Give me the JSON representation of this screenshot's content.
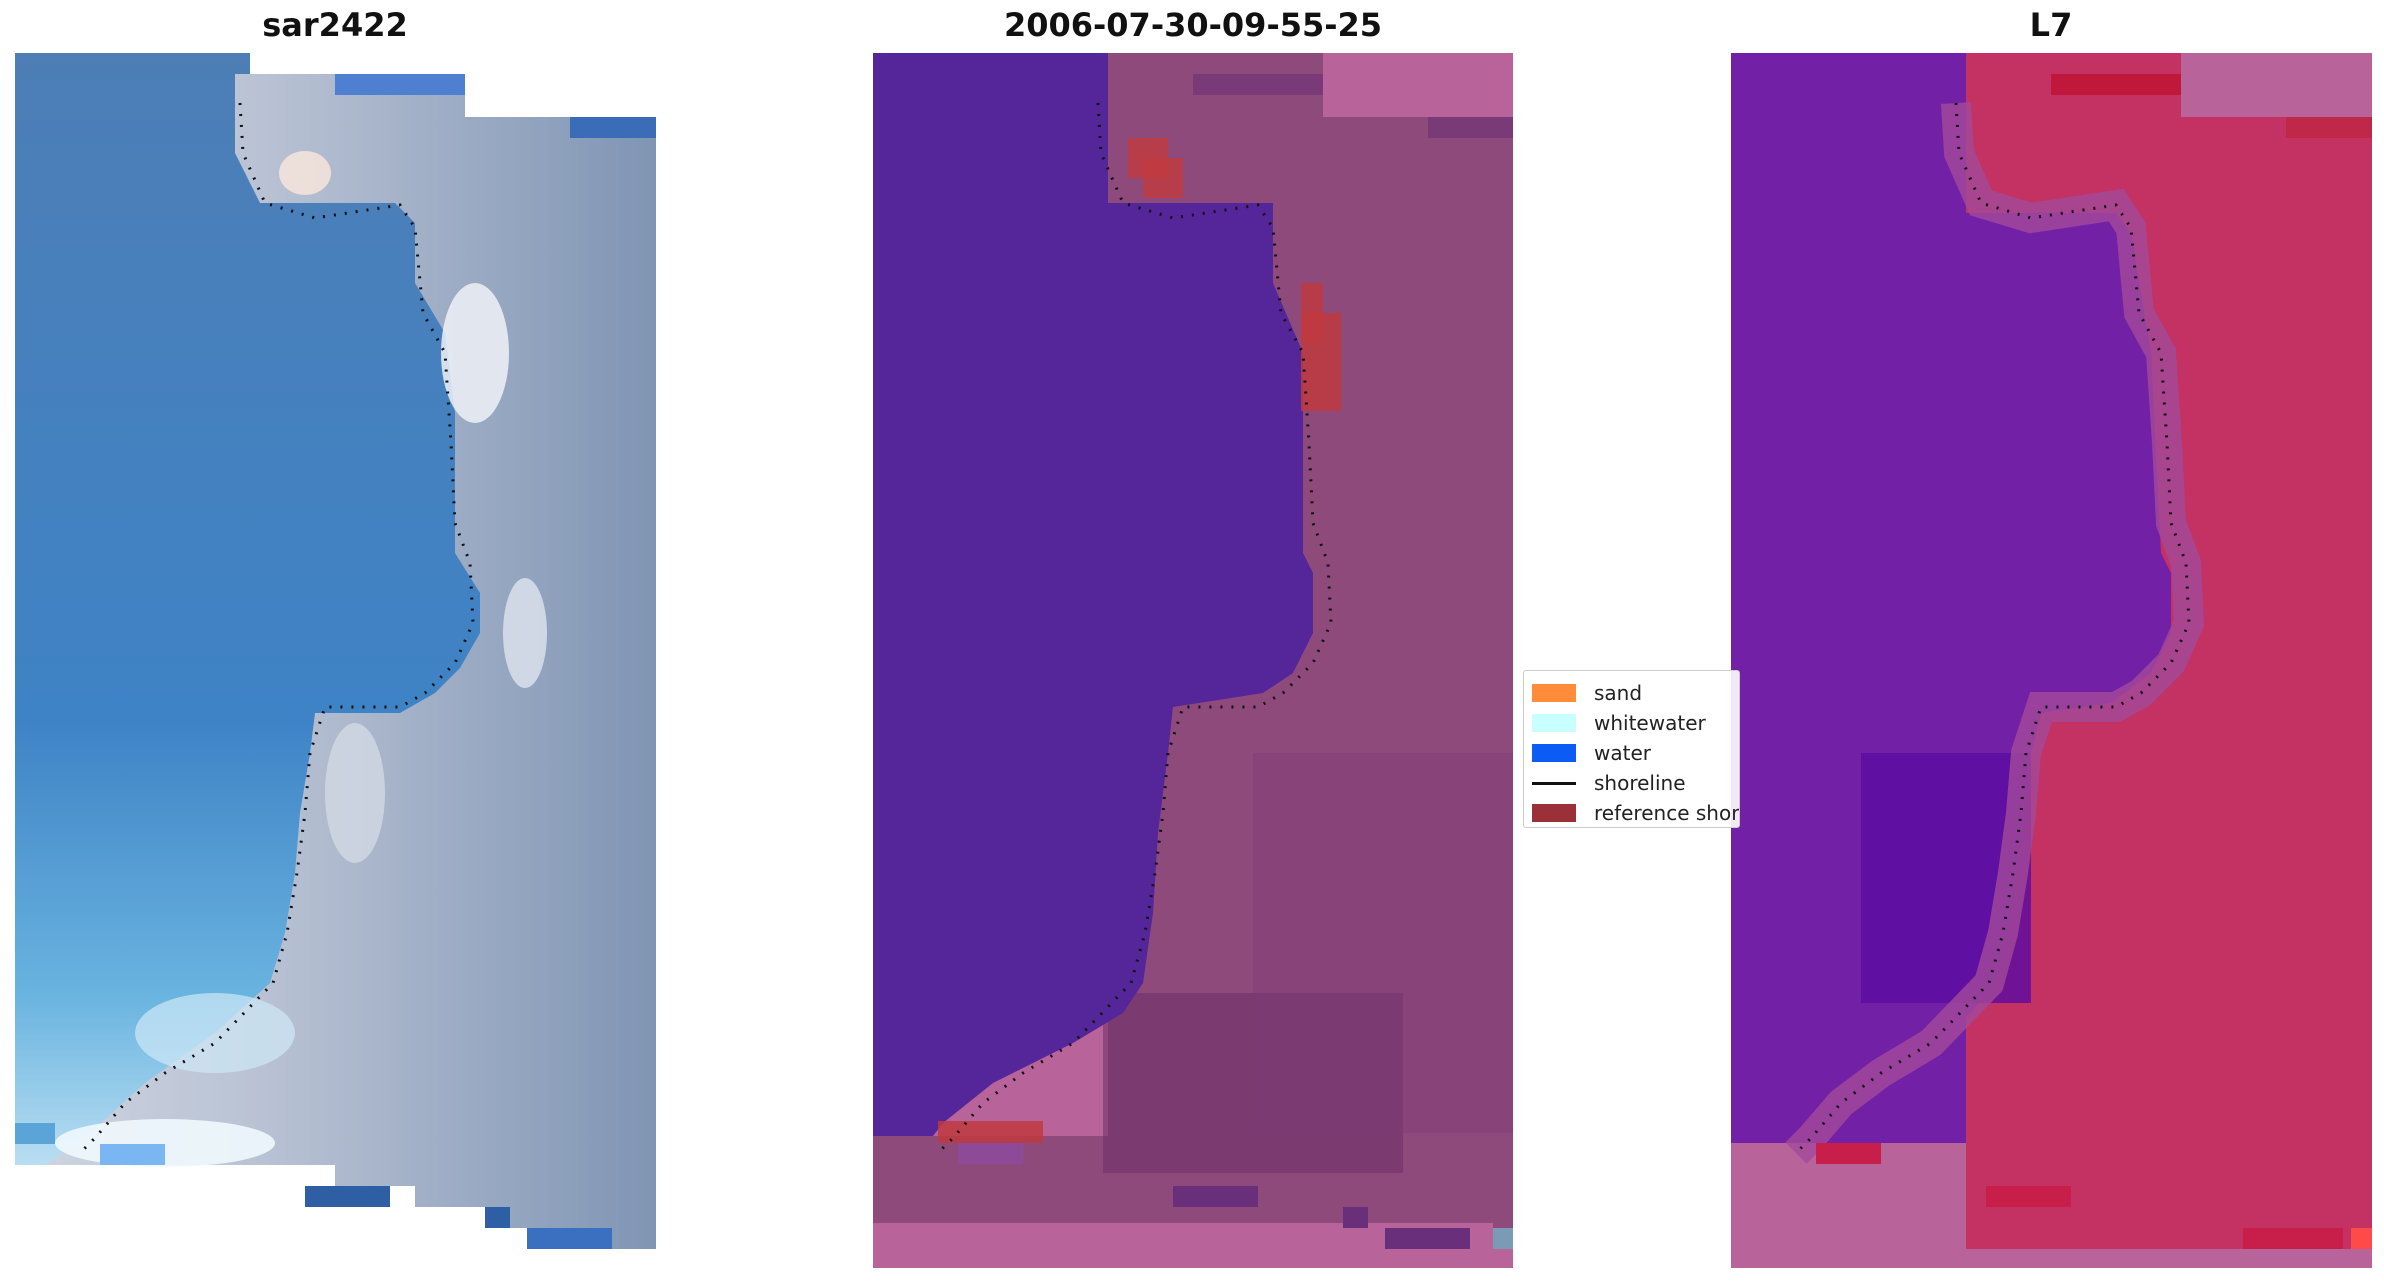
{
  "panels": [
    {
      "title": "sar2422"
    },
    {
      "title": "2006-07-30-09-55-25"
    },
    {
      "title": "L7"
    }
  ],
  "legend": {
    "items": [
      {
        "label": "sand",
        "color": "#ff8c3a",
        "kind": "patch"
      },
      {
        "label": "whitewater",
        "color": "#c8ffff",
        "kind": "patch"
      },
      {
        "label": "water",
        "color": "#0a5cf5",
        "kind": "patch"
      },
      {
        "label": "shoreline",
        "color": "#111111",
        "kind": "line"
      },
      {
        "label": "reference shoreline buffer",
        "color": "#9b3038",
        "kind": "patch"
      }
    ]
  },
  "colors": {
    "rgb_water": "#4a7fb8",
    "rgb_land": "#a9b4c8",
    "classified_water": "#55259a",
    "classified_land": "#914a7a",
    "classified_nodata": "#b8639a",
    "reference_buffer": "#c0393f",
    "index_water": "#7220a6",
    "index_land": "#c33263"
  }
}
